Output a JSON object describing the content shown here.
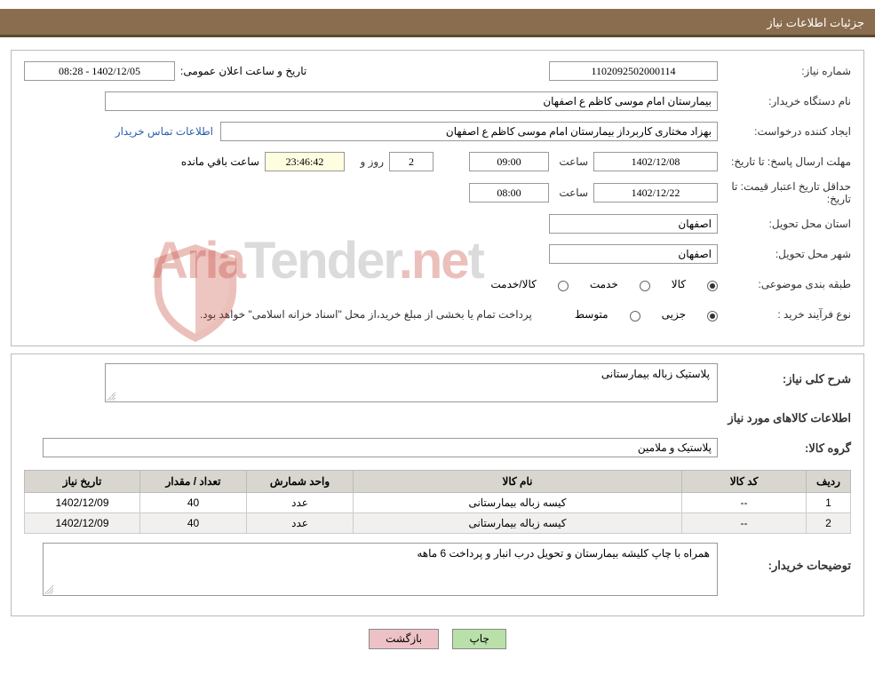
{
  "header": {
    "title": "جزئیات اطلاعات نیاز"
  },
  "main": {
    "need_number_label": "شماره نیاز:",
    "need_number": "1102092502000114",
    "announce_label": "تاریخ و ساعت اعلان عمومی:",
    "announce_value": "1402/12/05 - 08:28",
    "buyer_label": "نام دستگاه خریدار:",
    "buyer_value": "بیمارستان امام موسی کاظم ع  اصفهان",
    "requester_label": "ایجاد کننده درخواست:",
    "requester_value": "بهزاد مختاری کاربرداز بیمارستان امام موسی کاظم ع  اصفهان",
    "contact_link": "اطلاعات تماس خریدار",
    "deadline_label": "مهلت ارسال پاسخ: تا تاریخ:",
    "deadline_date": "1402/12/08",
    "time_label": "ساعت",
    "deadline_time": "09:00",
    "days": "2",
    "days_label": "روز و",
    "countdown": "23:46:42",
    "remaining_label": "ساعت باقي مانده",
    "validity_label": "حداقل تاریخ اعتبار قیمت: تا تاریخ:",
    "validity_date": "1402/12/22",
    "validity_time": "08:00",
    "province_label": "استان محل تحویل:",
    "province_value": "اصفهان",
    "city_label": "شهر محل تحویل:",
    "city_value": "اصفهان",
    "category_label": "طبقه بندی موضوعی:",
    "cat_goods": "کالا",
    "cat_service": "خدمت",
    "cat_both": "کالا/خدمت",
    "process_label": "نوع فرآیند خرید :",
    "proc_minor": "جزیی",
    "proc_medium": "متوسط",
    "payment_note": "پرداخت تمام یا بخشی از مبلغ خرید،از محل \"اسناد خزانه اسلامی\" خواهد بود."
  },
  "detail": {
    "desc_label": "شرح کلی نیاز:",
    "desc_value": "پلاستیک زباله بیمارستانی",
    "items_heading": "اطلاعات کالاهای مورد نیاز",
    "group_label": "گروه کالا:",
    "group_value": "پلاستیک و ملامین",
    "buyer_note_label": "توضیحات خریدار:",
    "buyer_note_value": "همراه با چاپ کلیشه بیمارستان و تحویل درب انبار و پرداخت 6 ماهه"
  },
  "table": {
    "columns": [
      "ردیف",
      "کد کالا",
      "نام کالا",
      "واحد شمارش",
      "تعداد / مقدار",
      "تاریخ نیاز"
    ],
    "rows": [
      [
        "1",
        "--",
        "کیسه زباله بیمارستانی",
        "عدد",
        "40",
        "1402/12/09"
      ],
      [
        "2",
        "--",
        "کیسه زباله بیمارستانی",
        "عدد",
        "40",
        "1402/12/09"
      ]
    ],
    "col_widths": [
      "50px",
      "140px",
      "auto",
      "120px",
      "120px",
      "130px"
    ]
  },
  "buttons": {
    "print": "چاپ",
    "back": "بازگشت"
  },
  "watermark": {
    "text1": "Aria",
    "text2": "Tender",
    "text3": ".ne",
    "text4": "t"
  },
  "colors": {
    "header_bg": "#8a6d4f",
    "print_btn": "#b8e0a8",
    "back_btn": "#edc2c6"
  }
}
